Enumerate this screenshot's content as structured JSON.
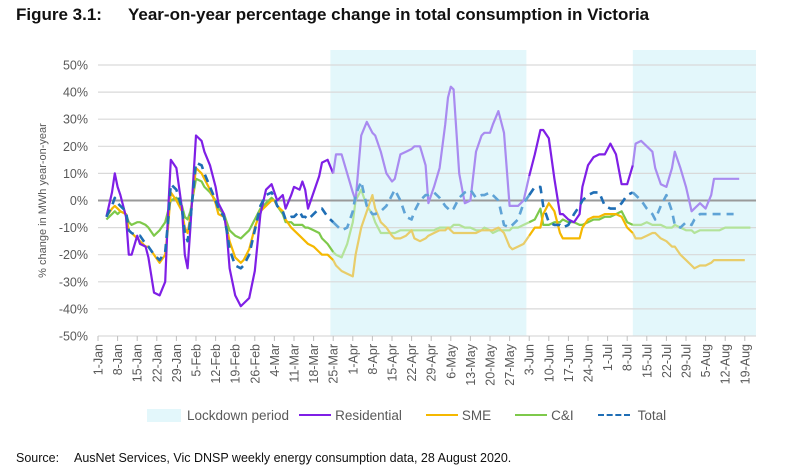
{
  "figure": {
    "number": "Figure 3.1:",
    "title": "Year-on-year percentage change in total consumption in Victoria"
  },
  "source": {
    "label": "Source:",
    "text": "AusNet Services, Vic DNSP weekly energy consumption data, 28 August 2020."
  },
  "chart_data": {
    "type": "line",
    "title": "Year-on-year percentage change in total consumption in Victoria",
    "xlabel": "",
    "ylabel": "% change in MWh year-on-year",
    "ylim": [
      -50,
      50
    ],
    "yticks": [
      50,
      40,
      30,
      20,
      10,
      0,
      -10,
      -20,
      -30,
      -40,
      -50
    ],
    "ytick_labels": [
      "50%",
      "40%",
      "30%",
      "20%",
      "10%",
      "0%",
      "-10%",
      "-20%",
      "-30%",
      "-40%",
      "-50%"
    ],
    "xlim_days": [
      0,
      234
    ],
    "x_tick_labels": [
      "1-Jan",
      "8-Jan",
      "15-Jan",
      "22-Jan",
      "29-Jan",
      "5-Feb",
      "12-Feb",
      "19-Feb",
      "26-Feb",
      "4-Mar",
      "11-Mar",
      "18-Mar",
      "25-Mar",
      "1-Apr",
      "8-Apr",
      "15-Apr",
      "22-Apr",
      "29-Apr",
      "6-May",
      "13-May",
      "20-May",
      "27-May",
      "3-Jun",
      "10-Jun",
      "17-Jun",
      "24-Jun",
      "1-Jul",
      "8-Jul",
      "15-Jul",
      "22-Jul",
      "29-Jul",
      "5-Aug",
      "12-Aug",
      "19-Aug"
    ],
    "x_tick_days": [
      0,
      7,
      14,
      21,
      28,
      35,
      42,
      49,
      56,
      63,
      70,
      77,
      84,
      91,
      98,
      105,
      112,
      119,
      126,
      133,
      140,
      147,
      154,
      161,
      168,
      175,
      182,
      189,
      196,
      203,
      210,
      217,
      224,
      231
    ],
    "grid": true,
    "legend_position": "bottom",
    "shaded_regions": [
      {
        "name": "Lockdown period",
        "start_day": 83,
        "end_day": 153,
        "color": "#e3f7fb"
      },
      {
        "name": "Lockdown period",
        "start_day": 191,
        "end_day": 235,
        "color": "#e3f7fb"
      }
    ],
    "x": [
      3,
      5,
      6,
      7,
      8,
      10,
      11,
      12,
      14,
      15,
      17,
      18,
      20,
      22,
      24,
      25,
      26,
      28,
      30,
      31,
      32,
      33,
      35,
      37,
      38,
      40,
      42,
      43,
      45,
      46,
      47,
      49,
      51,
      52,
      54,
      56,
      58,
      60,
      62,
      63,
      64,
      66,
      67,
      69,
      70,
      72,
      73,
      74,
      75,
      77,
      79,
      80,
      82,
      84,
      85,
      87,
      89,
      91,
      92,
      94,
      96,
      98,
      99,
      101,
      103,
      105,
      106,
      108,
      110,
      112,
      113,
      115,
      117,
      118,
      120,
      122,
      124,
      125,
      126,
      127,
      129,
      131,
      133,
      135,
      137,
      138,
      140,
      141,
      143,
      145,
      147,
      148,
      150,
      152,
      154,
      156,
      158,
      159,
      161,
      163,
      165,
      166,
      168,
      170,
      172,
      173,
      175,
      177,
      179,
      181,
      183,
      185,
      187,
      189,
      191,
      192,
      194,
      196,
      198,
      199,
      201,
      203,
      205,
      206,
      208,
      210,
      212,
      213,
      215,
      217,
      219,
      220,
      222,
      224,
      226,
      227,
      229,
      231,
      233,
      234
    ],
    "series": [
      {
        "name": "Residential",
        "color": "#7f1fe6",
        "color_shaded": "#a98bf0",
        "style": "solid",
        "values": [
          -6,
          3,
          10,
          5,
          2,
          -6,
          -20,
          -20,
          -13,
          -16,
          -17,
          -21,
          -34,
          -35,
          -30,
          -5,
          15,
          12,
          -3,
          -20,
          -25,
          -10,
          24,
          22,
          18,
          13,
          5,
          -1,
          -5,
          -12,
          -25,
          -35,
          -39,
          -38,
          -36,
          -26,
          -5,
          4,
          6,
          3,
          0,
          2,
          -3,
          2,
          5,
          4,
          7,
          4,
          -3,
          3,
          9,
          14,
          15,
          10,
          17,
          17,
          10,
          3,
          0,
          24,
          29,
          25,
          24,
          18,
          10,
          7,
          8,
          17,
          18,
          19,
          20,
          20,
          13,
          -1,
          5,
          12,
          28,
          38,
          42,
          41,
          10,
          -1,
          0,
          18,
          24,
          25,
          25,
          28,
          33,
          25,
          -2,
          -2,
          -2,
          0,
          9,
          17,
          26,
          26,
          23,
          8,
          -5,
          -5,
          -7,
          -8,
          -5,
          5,
          13,
          16,
          17,
          17,
          21,
          17,
          6,
          6,
          13,
          21,
          22,
          20,
          18,
          12,
          6,
          5,
          12,
          18,
          12,
          5,
          -4,
          -3,
          -1,
          -3,
          2,
          8,
          8,
          8,
          8,
          8,
          8
        ],
        "value_count_note": "approximate weekly-rolling daily series"
      },
      {
        "name": "SME",
        "color": "#f5b800",
        "color_shaded": "#e8cd6a",
        "style": "solid",
        "values": [
          -6,
          -3,
          -2,
          -3,
          -4,
          -5,
          -11,
          -12,
          -14,
          -15,
          -17,
          -17,
          -20,
          -23,
          -20,
          -10,
          3,
          0,
          -4,
          -10,
          -12,
          -6,
          12,
          10,
          8,
          4,
          -1,
          -5,
          -6,
          -10,
          -15,
          -21,
          -23,
          -22,
          -18,
          -10,
          -4,
          -2,
          0,
          0,
          -2,
          -4,
          -7,
          -10,
          -11,
          -13,
          -14,
          -15,
          -16,
          -17,
          -19,
          -20,
          -20,
          -22,
          -24,
          -26,
          -27,
          -28,
          -20,
          -10,
          -4,
          2,
          -3,
          -8,
          -10,
          -13,
          -14,
          -14,
          -13,
          -11,
          -14,
          -15,
          -14,
          -13,
          -12,
          -11,
          -11,
          -10,
          -11,
          -12,
          -12,
          -12,
          -12,
          -12,
          -11,
          -11,
          -11,
          -11,
          -10,
          -12,
          -17,
          -18,
          -17,
          -16,
          -13,
          -10,
          -10,
          -5,
          -1,
          -4,
          -12,
          -14,
          -14,
          -14,
          -14,
          -10,
          -7,
          -6,
          -6,
          -5,
          -5,
          -5,
          -6,
          -10,
          -12,
          -14,
          -14,
          -13,
          -12,
          -12,
          -14,
          -15,
          -17,
          -17,
          -20,
          -22,
          -24,
          -25,
          -24,
          -24,
          -23,
          -22,
          -22,
          -22,
          -22,
          -22,
          -22,
          -22
        ],
        "value_count_note": "approximate"
      },
      {
        "name": "C&I",
        "color": "#7ec94b",
        "color_shaded": "#b3e39a",
        "style": "solid",
        "values": [
          -7,
          -5,
          -4,
          -5,
          -4,
          -5,
          -8,
          -9,
          -8,
          -8,
          -9,
          -10,
          -13,
          -11,
          -8,
          -4,
          0,
          1,
          -2,
          -6,
          -7,
          -4,
          8,
          7,
          5,
          3,
          0,
          -3,
          -5,
          -8,
          -11,
          -13,
          -14,
          -13,
          -11,
          -7,
          -3,
          -1,
          1,
          0,
          -2,
          -5,
          -8,
          -8,
          -9,
          -9,
          -9,
          -10,
          -10,
          -11,
          -12,
          -14,
          -16,
          -19,
          -20,
          -21,
          -16,
          -8,
          0,
          4,
          -2,
          -5,
          -8,
          -12,
          -12,
          -12,
          -12,
          -11,
          -11,
          -11,
          -11,
          -11,
          -11,
          -11,
          -11,
          -10,
          -10,
          -10,
          -10,
          -9,
          -9,
          -10,
          -10,
          -11,
          -11,
          -10,
          -11,
          -12,
          -11,
          -11,
          -11,
          -10,
          -10,
          -9,
          -8,
          -7,
          -3,
          -9,
          -9,
          -8,
          -8,
          -7,
          -8,
          -8,
          -9,
          -9,
          -8,
          -7,
          -7,
          -6,
          -6,
          -5,
          -4,
          -8,
          -9,
          -9,
          -9,
          -8,
          -9,
          -9,
          -9,
          -10,
          -10,
          -9,
          -10,
          -11,
          -11,
          -12,
          -11,
          -11,
          -11,
          -11,
          -11,
          -10,
          -10,
          -10,
          -10,
          -10,
          -10
        ],
        "value_count_note": "approximate"
      },
      {
        "name": "Total",
        "color": "#1f6eb5",
        "color_shaded": "#5fa3d6",
        "style": "dashed",
        "values": [
          -6,
          -2,
          1,
          -1,
          -2,
          -4,
          -11,
          -12,
          -13,
          -13,
          -16,
          -17,
          -20,
          -22,
          -19,
          -8,
          6,
          4,
          -3,
          -12,
          -15,
          -7,
          14,
          13,
          10,
          5,
          0,
          -3,
          -6,
          -11,
          -18,
          -24,
          -25,
          -24,
          -20,
          -11,
          -2,
          2,
          3,
          1,
          -2,
          -4,
          -7,
          -6,
          -6,
          -4,
          -6,
          -6,
          -7,
          -5,
          -3,
          -3,
          -6,
          -8,
          -9,
          -11,
          -10,
          -4,
          2,
          7,
          -2,
          -5,
          -5,
          -4,
          -2,
          2,
          4,
          0,
          -6,
          -7,
          -4,
          0,
          2,
          2,
          3,
          1,
          -2,
          -3,
          -4,
          -3,
          1,
          3,
          4,
          1,
          2,
          2,
          3,
          2,
          0,
          -9,
          -10,
          -9,
          -7,
          -1,
          2,
          5,
          5,
          -2,
          -8,
          -9,
          -9,
          -10,
          -9,
          -5,
          -2,
          0,
          2,
          3,
          3,
          -2,
          -3,
          -3,
          -1,
          2,
          3,
          2,
          0,
          -3,
          -5,
          -7,
          -2,
          2,
          -4,
          -9,
          -10,
          -8,
          -9,
          -7,
          -5,
          -5,
          -5,
          -5,
          -5,
          -5,
          -5,
          -5
        ],
        "value_count_note": "approximate"
      }
    ]
  },
  "legend": {
    "items": [
      {
        "label": "Lockdown period",
        "kind": "box",
        "color": "#e3f7fb"
      },
      {
        "label": "Residential",
        "kind": "line",
        "color": "#7f1fe6"
      },
      {
        "label": "SME",
        "kind": "line",
        "color": "#f5b800"
      },
      {
        "label": "C&I",
        "kind": "line",
        "color": "#7ec94b"
      },
      {
        "label": "Total",
        "kind": "dash",
        "color": "#1f6eb5"
      }
    ]
  }
}
